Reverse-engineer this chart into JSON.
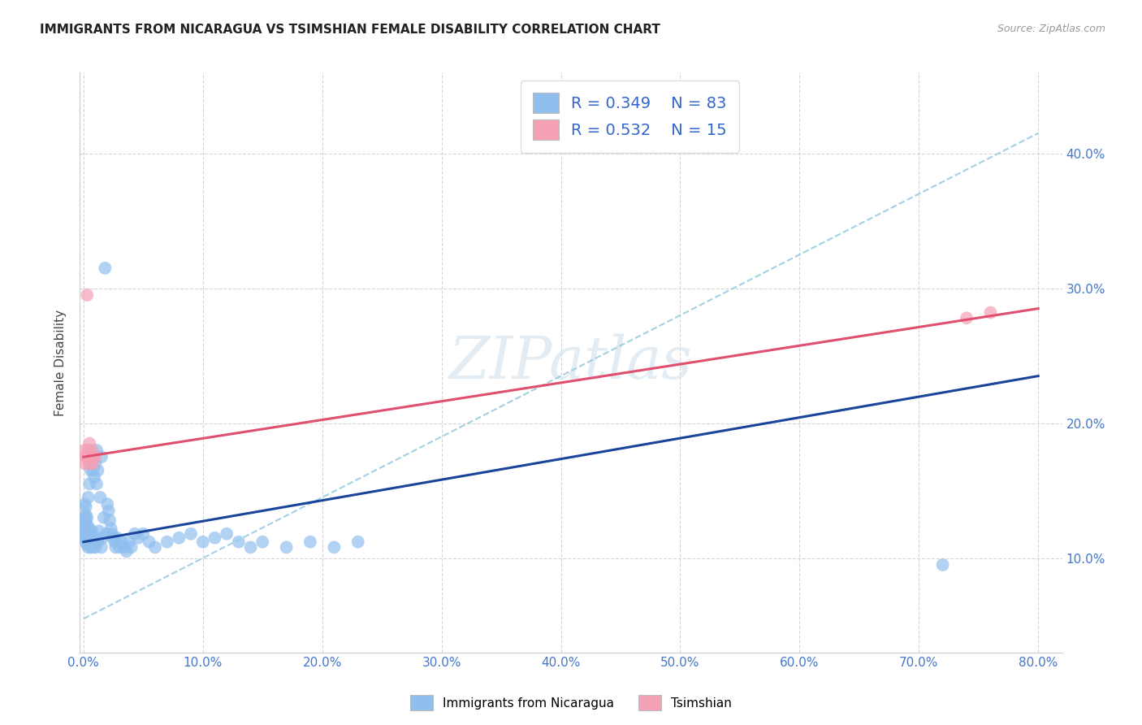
{
  "title": "IMMIGRANTS FROM NICARAGUA VS TSIMSHIAN FEMALE DISABILITY CORRELATION CHART",
  "source": "Source: ZipAtlas.com",
  "ylabel": "Female Disability",
  "xlim": [
    -0.003,
    0.82
  ],
  "ylim": [
    0.03,
    0.46
  ],
  "x_ticks": [
    0.0,
    0.1,
    0.2,
    0.3,
    0.4,
    0.5,
    0.6,
    0.7,
    0.8
  ],
  "x_tick_labels": [
    "0.0%",
    "10.0%",
    "20.0%",
    "30.0%",
    "40.0%",
    "50.0%",
    "60.0%",
    "70.0%",
    "80.0%"
  ],
  "y_ticks": [
    0.1,
    0.2,
    0.3,
    0.4
  ],
  "y_tick_labels": [
    "10.0%",
    "20.0%",
    "30.0%",
    "40.0%"
  ],
  "color_blue": "#90bfee",
  "color_pink": "#f4a0b5",
  "color_trendline_blue": "#1a449a",
  "color_trendline_pink": "#e0506e",
  "color_trendline_dashed": "#99cce0",
  "color_grid": "#cccccc",
  "color_axis_labels": "#4477cc",
  "color_source": "#999999",
  "watermark": "ZIPatlas",
  "legend_label1": "Immigrants from Nicaragua",
  "legend_label2": "Tsimshian",
  "legend_r1": "R = 0.349",
  "legend_n1": "N = 83",
  "legend_r2": "R = 0.532",
  "legend_n2": "N = 15",
  "trendline_blue_x0": 0.0,
  "trendline_blue_x1": 0.8,
  "trendline_blue_y0": 0.112,
  "trendline_blue_y1": 0.235,
  "trendline_pink_x0": 0.0,
  "trendline_pink_x1": 0.8,
  "trendline_pink_y0": 0.175,
  "trendline_pink_y1": 0.285,
  "trendline_dashed_x0": 0.0,
  "trendline_dashed_x1": 0.8,
  "trendline_dashed_y0": 0.055,
  "trendline_dashed_y1": 0.415,
  "nic_x": [
    0.001,
    0.001,
    0.001,
    0.001,
    0.001,
    0.002,
    0.002,
    0.002,
    0.002,
    0.002,
    0.002,
    0.003,
    0.003,
    0.003,
    0.003,
    0.003,
    0.004,
    0.004,
    0.004,
    0.004,
    0.005,
    0.005,
    0.005,
    0.005,
    0.006,
    0.006,
    0.006,
    0.007,
    0.007,
    0.007,
    0.008,
    0.008,
    0.008,
    0.009,
    0.009,
    0.01,
    0.01,
    0.011,
    0.011,
    0.012,
    0.012,
    0.013,
    0.014,
    0.015,
    0.015,
    0.016,
    0.017,
    0.018,
    0.019,
    0.02,
    0.021,
    0.022,
    0.023,
    0.024,
    0.025,
    0.026,
    0.027,
    0.028,
    0.03,
    0.032,
    0.034,
    0.036,
    0.038,
    0.04,
    0.043,
    0.046,
    0.05,
    0.055,
    0.06,
    0.07,
    0.08,
    0.09,
    0.1,
    0.11,
    0.12,
    0.13,
    0.14,
    0.15,
    0.17,
    0.19,
    0.21,
    0.23,
    0.72
  ],
  "nic_y": [
    0.115,
    0.12,
    0.125,
    0.13,
    0.14,
    0.112,
    0.118,
    0.122,
    0.128,
    0.132,
    0.138,
    0.11,
    0.115,
    0.12,
    0.125,
    0.13,
    0.108,
    0.113,
    0.118,
    0.145,
    0.112,
    0.117,
    0.122,
    0.155,
    0.108,
    0.115,
    0.165,
    0.112,
    0.12,
    0.175,
    0.108,
    0.116,
    0.165,
    0.11,
    0.16,
    0.108,
    0.17,
    0.155,
    0.18,
    0.112,
    0.165,
    0.12,
    0.145,
    0.108,
    0.175,
    0.115,
    0.13,
    0.315,
    0.118,
    0.14,
    0.135,
    0.128,
    0.122,
    0.118,
    0.115,
    0.112,
    0.108,
    0.115,
    0.108,
    0.112,
    0.108,
    0.105,
    0.112,
    0.108,
    0.118,
    0.115,
    0.118,
    0.112,
    0.108,
    0.112,
    0.115,
    0.118,
    0.112,
    0.115,
    0.118,
    0.112,
    0.108,
    0.112,
    0.108,
    0.112,
    0.108,
    0.112,
    0.095
  ],
  "tsim_x": [
    0.001,
    0.001,
    0.002,
    0.003,
    0.003,
    0.004,
    0.005,
    0.005,
    0.006,
    0.007,
    0.007,
    0.008,
    0.01,
    0.74,
    0.76
  ],
  "tsim_y": [
    0.17,
    0.18,
    0.175,
    0.295,
    0.175,
    0.18,
    0.17,
    0.185,
    0.175,
    0.18,
    0.175,
    0.17,
    0.175,
    0.278,
    0.282
  ]
}
